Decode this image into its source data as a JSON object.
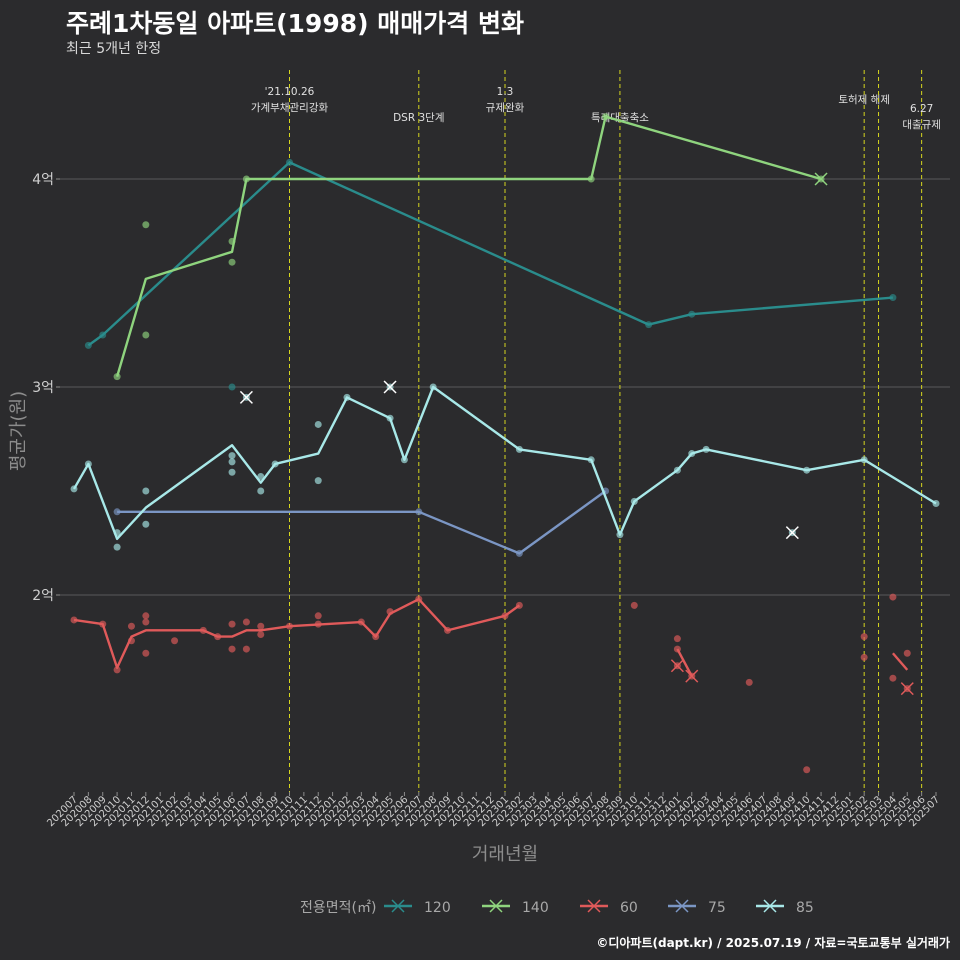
{
  "chart_data": {
    "type": "line",
    "title": "주례1차동일 아파트(1998) 매매가격 변화",
    "subtitle": "최근 5개년 한정",
    "xlabel": "거래년월",
    "ylabel": "평균가(원)",
    "caption": "©디아파트(dapt.kr) / 2025.07.19 / 자료=국토교통부 실거래가",
    "y_unit": "억",
    "ylim": [
      1.0,
      4.5
    ],
    "yticks": [
      {
        "v": 2,
        "label": "2억"
      },
      {
        "v": 3,
        "label": "3억"
      },
      {
        "v": 4,
        "label": "4억"
      }
    ],
    "grid": true,
    "x_months": [
      "202007",
      "202008",
      "202009",
      "202010",
      "202011",
      "202012",
      "202101",
      "202102",
      "202103",
      "202104",
      "202105",
      "202106",
      "202107",
      "202108",
      "202109",
      "202110",
      "202111",
      "202112",
      "202201",
      "202202",
      "202203",
      "202204",
      "202205",
      "202206",
      "202207",
      "202208",
      "202209",
      "202210",
      "202211",
      "202212",
      "202301",
      "202302",
      "202303",
      "202304",
      "202305",
      "202306",
      "202307",
      "202308",
      "202309",
      "202310",
      "202311",
      "202312",
      "202401",
      "202402",
      "202403",
      "202404",
      "202405",
      "202406",
      "202407",
      "202408",
      "202409",
      "202410",
      "202411",
      "202412",
      "202501",
      "202502",
      "202503",
      "202504",
      "202505",
      "202506",
      "202507"
    ],
    "events": [
      {
        "x": "202110",
        "label_lines": [
          "'21.10.26",
          "가계부채관리강화"
        ]
      },
      {
        "x": "202207",
        "label_lines": [
          "DSR 3단계"
        ]
      },
      {
        "x": "202301",
        "label_lines": [
          "1.3",
          "규제완화"
        ]
      },
      {
        "x": "202309",
        "label_lines": [
          "특례대출축소"
        ]
      },
      {
        "x": "202502",
        "label_lines": [
          "토허제 해제"
        ]
      },
      {
        "x": "202503",
        "label_lines": [
          ""
        ]
      },
      {
        "x": "202506",
        "label_lines": [
          "6.27",
          "대출규제"
        ]
      }
    ],
    "legend_title": "전용면적(㎡)",
    "series": [
      {
        "name": "120",
        "color": "#2a8c8c",
        "line": [
          [
            "202008",
            3.2
          ],
          [
            "202009",
            3.25
          ],
          [
            "202110",
            4.08
          ],
          [
            "202311",
            3.3
          ],
          [
            "202402",
            3.35
          ],
          [
            "202504",
            3.43
          ]
        ],
        "points": [
          [
            "202008",
            3.2
          ],
          [
            "202009",
            3.25
          ],
          [
            "202106",
            3.0
          ],
          [
            "202110",
            4.08
          ],
          [
            "202311",
            3.3
          ],
          [
            "202402",
            3.35
          ],
          [
            "202504",
            3.43
          ]
        ],
        "crosses": []
      },
      {
        "name": "140",
        "color": "#8fd47e",
        "line": [
          [
            "202010",
            3.05
          ],
          [
            "202012",
            3.52
          ],
          [
            "202106",
            3.65
          ],
          [
            "202107",
            4.0
          ],
          [
            "202307",
            4.0
          ],
          [
            "202308",
            4.3
          ],
          [
            "202411",
            4.0
          ]
        ],
        "points": [
          [
            "202010",
            3.05
          ],
          [
            "202012",
            3.78
          ],
          [
            "202012",
            3.25
          ],
          [
            "202106",
            3.7
          ],
          [
            "202106",
            3.6
          ],
          [
            "202107",
            4.0
          ],
          [
            "202307",
            4.0
          ],
          [
            "202308",
            4.3
          ]
        ],
        "crosses": [
          [
            "202411",
            4.0
          ]
        ]
      },
      {
        "name": "60",
        "color": "#e05a5a",
        "line": [
          [
            "202007",
            1.88
          ],
          [
            "202009",
            1.86
          ],
          [
            "202010",
            1.65
          ],
          [
            "202011",
            1.8
          ],
          [
            "202012",
            1.83
          ],
          [
            "202104",
            1.83
          ],
          [
            "202105",
            1.8
          ],
          [
            "202106",
            1.8
          ],
          [
            "202107",
            1.83
          ],
          [
            "202108",
            1.83
          ],
          [
            "202109",
            1.84
          ],
          [
            "202110",
            1.85
          ],
          [
            "202203",
            1.87
          ],
          [
            "202204",
            1.8
          ],
          [
            "202205",
            1.91
          ],
          [
            "202207",
            1.98
          ],
          [
            "202209",
            1.83
          ],
          [
            "202301",
            1.9
          ],
          [
            "202302",
            1.95
          ]
        ],
        "points": [
          [
            "202007",
            1.88
          ],
          [
            "202009",
            1.86
          ],
          [
            "202010",
            1.64
          ],
          [
            "202011",
            1.85
          ],
          [
            "202011",
            1.78
          ],
          [
            "202012",
            1.9
          ],
          [
            "202012",
            1.87
          ],
          [
            "202012",
            1.72
          ],
          [
            "202102",
            1.78
          ],
          [
            "202104",
            1.83
          ],
          [
            "202105",
            1.8
          ],
          [
            "202106",
            1.86
          ],
          [
            "202106",
            1.74
          ],
          [
            "202107",
            1.87
          ],
          [
            "202107",
            1.74
          ],
          [
            "202108",
            1.85
          ],
          [
            "202108",
            1.81
          ],
          [
            "202110",
            1.85
          ],
          [
            "202112",
            1.9
          ],
          [
            "202112",
            1.86
          ],
          [
            "202203",
            1.87
          ],
          [
            "202204",
            1.8
          ],
          [
            "202205",
            1.92
          ],
          [
            "202207",
            1.98
          ],
          [
            "202209",
            1.83
          ],
          [
            "202301",
            1.9
          ],
          [
            "202302",
            1.95
          ],
          [
            "202310",
            1.95
          ],
          [
            "202401",
            1.79
          ],
          [
            "202401",
            1.74
          ],
          [
            "202406",
            1.58
          ],
          [
            "202410",
            1.16
          ],
          [
            "202502",
            1.8
          ],
          [
            "202502",
            1.7
          ],
          [
            "202504",
            1.99
          ],
          [
            "202504",
            1.6
          ],
          [
            "202505",
            1.72
          ]
        ],
        "crosses": [
          [
            "202401",
            1.66
          ],
          [
            "202402",
            1.61
          ],
          [
            "202505",
            1.55
          ]
        ],
        "segments": [
          [
            [
              "202401",
              1.74
            ],
            [
              "202402",
              1.61
            ]
          ],
          [
            [
              "202504",
              1.72
            ],
            [
              "202505",
              1.64
            ]
          ]
        ]
      },
      {
        "name": "75",
        "color": "#7b96c4",
        "line": [
          [
            "202010",
            2.4
          ],
          [
            "202207",
            2.4
          ],
          [
            "202302",
            2.2
          ],
          [
            "202308",
            2.5
          ]
        ],
        "points": [
          [
            "202010",
            2.4
          ],
          [
            "202207",
            2.4
          ],
          [
            "202302",
            2.2
          ],
          [
            "202308",
            2.5
          ]
        ],
        "crosses": []
      },
      {
        "name": "85",
        "color": "#a8e8e8",
        "line": [
          [
            "202007",
            2.51
          ],
          [
            "202008",
            2.63
          ],
          [
            "202010",
            2.27
          ],
          [
            "202012",
            2.42
          ],
          [
            "202106",
            2.72
          ],
          [
            "202108",
            2.54
          ],
          [
            "202109",
            2.63
          ],
          [
            "202112",
            2.68
          ],
          [
            "202202",
            2.95
          ],
          [
            "202205",
            2.85
          ],
          [
            "202206",
            2.65
          ],
          [
            "202208",
            3.0
          ],
          [
            "202302",
            2.7
          ],
          [
            "202307",
            2.65
          ],
          [
            "202309",
            2.29
          ],
          [
            "202310",
            2.45
          ],
          [
            "202401",
            2.6
          ],
          [
            "202402",
            2.68
          ],
          [
            "202403",
            2.7
          ],
          [
            "202410",
            2.6
          ],
          [
            "202502",
            2.65
          ],
          [
            "202507",
            2.44
          ]
        ],
        "points": [
          [
            "202007",
            2.51
          ],
          [
            "202008",
            2.63
          ],
          [
            "202010",
            2.3
          ],
          [
            "202010",
            2.23
          ],
          [
            "202012",
            2.5
          ],
          [
            "202012",
            2.34
          ],
          [
            "202106",
            2.67
          ],
          [
            "202106",
            2.64
          ],
          [
            "202106",
            2.59
          ],
          [
            "202108",
            2.57
          ],
          [
            "202108",
            2.5
          ],
          [
            "202109",
            2.63
          ],
          [
            "202112",
            2.82
          ],
          [
            "202112",
            2.55
          ],
          [
            "202202",
            2.95
          ],
          [
            "202205",
            2.85
          ],
          [
            "202206",
            2.65
          ],
          [
            "202208",
            3.0
          ],
          [
            "202302",
            2.7
          ],
          [
            "202307",
            2.65
          ],
          [
            "202309",
            2.29
          ],
          [
            "202310",
            2.45
          ],
          [
            "202401",
            2.6
          ],
          [
            "202402",
            2.68
          ],
          [
            "202403",
            2.7
          ],
          [
            "202410",
            2.6
          ],
          [
            "202502",
            2.65
          ],
          [
            "202507",
            2.44
          ]
        ],
        "crosses": [
          [
            "202107",
            2.95
          ],
          [
            "202205",
            3.0
          ],
          [
            "202409",
            2.3
          ]
        ]
      }
    ]
  }
}
